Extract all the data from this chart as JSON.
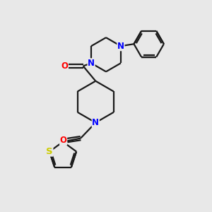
{
  "bg_color": "#e8e8e8",
  "bond_color": "#1a1a1a",
  "N_color": "#0000ff",
  "O_color": "#ff0000",
  "S_color": "#cccc00",
  "line_width": 1.6,
  "font_size_atom": 8.5,
  "fig_size": [
    3.0,
    3.0
  ],
  "dpi": 100,
  "xlim": [
    0,
    10
  ],
  "ylim": [
    0,
    10
  ]
}
